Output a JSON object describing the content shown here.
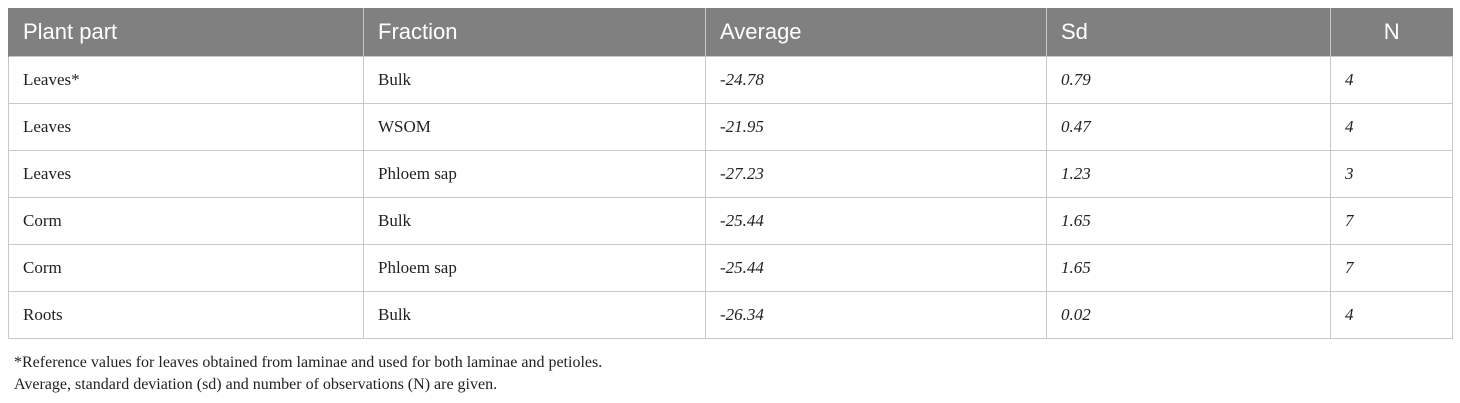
{
  "table": {
    "headers": [
      "Plant part",
      "Fraction",
      "Average",
      "Sd",
      "N"
    ],
    "rows": [
      [
        "Leaves*",
        "Bulk",
        "-24.78",
        "0.79",
        "4"
      ],
      [
        "Leaves",
        "WSOM",
        "-21.95",
        "0.47",
        "4"
      ],
      [
        "Leaves",
        "Phloem sap",
        "-27.23",
        "1.23",
        "3"
      ],
      [
        "Corm",
        "Bulk",
        "-25.44",
        "1.65",
        "7"
      ],
      [
        "Corm",
        "Phloem sap",
        "-25.44",
        "1.65",
        "7"
      ],
      [
        "Roots",
        "Bulk",
        "-26.34",
        "0.02",
        "4"
      ]
    ]
  },
  "footnotes": [
    "*Reference values for leaves obtained from laminae and used for both laminae and petioles.",
    "Average, standard deviation (sd) and number of observations (N) are given."
  ],
  "colors": {
    "header_bg": "#808080",
    "header_text": "#ffffff",
    "border": "#c8c8c8"
  }
}
